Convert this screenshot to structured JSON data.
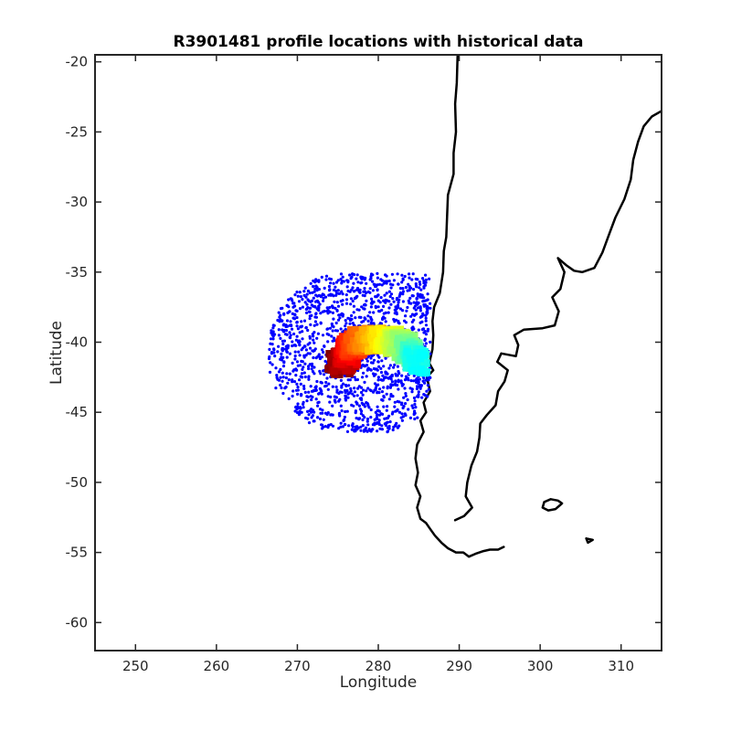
{
  "chart_data": {
    "type": "scatter",
    "title": "R3901481 profile locations with historical data",
    "xlabel": "Longitude",
    "ylabel": "Latitude",
    "xlim": [
      245,
      315
    ],
    "ylim": [
      -62,
      -19.5
    ],
    "xticks": [
      250,
      260,
      270,
      280,
      290,
      300,
      310
    ],
    "yticks": [
      -20,
      -25,
      -30,
      -35,
      -40,
      -45,
      -50,
      -55,
      -60
    ],
    "grid": false,
    "colors": {
      "historical": "#0000ff",
      "coastline": "#000000",
      "profile_colormap": [
        "#800000",
        "#ff0000",
        "#ff8000",
        "#ffff00",
        "#80ff80",
        "#00ffff"
      ]
    },
    "historical_region": {
      "lon_min": 266.5,
      "lon_max": 286.5,
      "lat_min": -46.4,
      "lat_max": -35.1,
      "approx_count": 1500
    },
    "profile_path": [
      {
        "lon": 275.0,
        "lat": -41.6
      },
      {
        "lon": 276.0,
        "lat": -41.2
      },
      {
        "lon": 276.5,
        "lat": -40.4
      },
      {
        "lon": 277.5,
        "lat": -39.9
      },
      {
        "lon": 279.0,
        "lat": -39.8
      },
      {
        "lon": 280.5,
        "lat": -39.8
      },
      {
        "lon": 282.0,
        "lat": -39.9
      },
      {
        "lon": 283.3,
        "lat": -40.3
      },
      {
        "lon": 284.3,
        "lat": -40.9
      },
      {
        "lon": 285.0,
        "lat": -41.5
      }
    ],
    "coastlines": {
      "south_america_west": [
        [
          289.8,
          -19.5
        ],
        [
          289.7,
          -21.5
        ],
        [
          289.5,
          -23.0
        ],
        [
          289.6,
          -25.0
        ],
        [
          289.3,
          -26.5
        ],
        [
          289.3,
          -28.0
        ],
        [
          288.6,
          -29.5
        ],
        [
          288.5,
          -31.0
        ],
        [
          288.4,
          -32.5
        ],
        [
          288.1,
          -33.5
        ],
        [
          288.0,
          -35.0
        ],
        [
          287.6,
          -36.5
        ],
        [
          286.9,
          -37.5
        ],
        [
          286.7,
          -38.5
        ],
        [
          286.8,
          -39.5
        ],
        [
          286.7,
          -40.5
        ],
        [
          286.3,
          -41.5
        ],
        [
          286.8,
          -42.0
        ],
        [
          286.0,
          -42.5
        ],
        [
          286.4,
          -43.5
        ],
        [
          285.6,
          -44.3
        ],
        [
          285.9,
          -45.0
        ],
        [
          285.2,
          -45.6
        ],
        [
          285.6,
          -46.4
        ],
        [
          284.8,
          -47.3
        ],
        [
          284.6,
          -48.3
        ],
        [
          284.9,
          -49.3
        ],
        [
          284.6,
          -50.2
        ],
        [
          285.2,
          -51.0
        ],
        [
          284.8,
          -51.8
        ],
        [
          285.2,
          -52.6
        ],
        [
          285.9,
          -52.9
        ],
        [
          286.5,
          -53.4
        ],
        [
          287.0,
          -53.8
        ],
        [
          287.8,
          -54.3
        ],
        [
          288.6,
          -54.7
        ],
        [
          289.6,
          -55.0
        ],
        [
          290.5,
          -55.0
        ],
        [
          291.2,
          -55.3
        ],
        [
          292.0,
          -55.1
        ],
        [
          293.0,
          -54.9
        ],
        [
          293.8,
          -54.8
        ],
        [
          294.8,
          -54.8
        ],
        [
          295.5,
          -54.6
        ]
      ],
      "south_america_east": [
        [
          315.0,
          -23.5
        ],
        [
          313.8,
          -23.9
        ],
        [
          312.8,
          -24.6
        ],
        [
          312.1,
          -25.7
        ],
        [
          311.5,
          -27.0
        ],
        [
          311.2,
          -28.4
        ],
        [
          310.4,
          -29.8
        ],
        [
          309.3,
          -31.1
        ],
        [
          308.4,
          -32.5
        ],
        [
          307.7,
          -33.6
        ],
        [
          306.7,
          -34.7
        ],
        [
          305.2,
          -35.0
        ],
        [
          304.2,
          -34.9
        ],
        [
          303.2,
          -34.5
        ],
        [
          302.2,
          -34.0
        ],
        [
          303.0,
          -35.0
        ],
        [
          302.5,
          -36.2
        ],
        [
          301.5,
          -36.8
        ],
        [
          302.3,
          -37.8
        ],
        [
          301.8,
          -38.8
        ],
        [
          300.3,
          -39.0
        ],
        [
          298.0,
          -39.1
        ],
        [
          296.8,
          -39.5
        ],
        [
          297.3,
          -40.2
        ],
        [
          297.0,
          -41.0
        ],
        [
          295.2,
          -40.8
        ],
        [
          294.7,
          -41.4
        ],
        [
          296.0,
          -42.0
        ],
        [
          295.6,
          -42.8
        ],
        [
          294.8,
          -43.5
        ],
        [
          294.5,
          -44.5
        ],
        [
          293.4,
          -45.2
        ],
        [
          292.6,
          -45.8
        ],
        [
          292.5,
          -46.8
        ],
        [
          292.2,
          -47.8
        ],
        [
          291.5,
          -48.8
        ],
        [
          291.0,
          -50.0
        ],
        [
          290.8,
          -51.0
        ],
        [
          291.6,
          -51.8
        ],
        [
          290.6,
          -52.4
        ],
        [
          289.5,
          -52.7
        ]
      ],
      "falklands": [
        [
          300.5,
          -51.4
        ],
        [
          301.3,
          -51.2
        ],
        [
          302.2,
          -51.3
        ],
        [
          302.7,
          -51.5
        ],
        [
          301.9,
          -51.9
        ],
        [
          301.0,
          -52.0
        ],
        [
          300.3,
          -51.8
        ],
        [
          300.5,
          -51.4
        ]
      ],
      "south_georgia": [
        [
          305.7,
          -54.0
        ],
        [
          306.5,
          -54.1
        ],
        [
          305.9,
          -54.3
        ],
        [
          305.7,
          -54.0
        ]
      ]
    }
  }
}
